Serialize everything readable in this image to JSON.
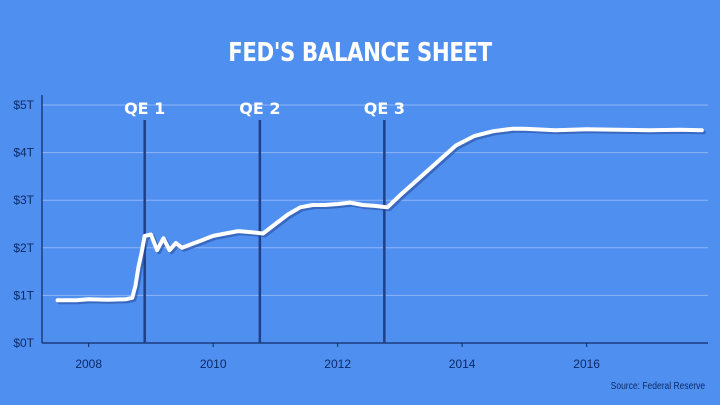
{
  "chart_data": {
    "type": "line",
    "title": "FED'S BALANCE SHEET",
    "source": "Source: Federal Reserve",
    "y_ticks": [
      "$0T",
      "$1T",
      "$2T",
      "$3T",
      "$4T",
      "$5T"
    ],
    "x_ticks": [
      "2008",
      "2010",
      "2012",
      "2014",
      "2016"
    ],
    "ylim": [
      0,
      5
    ],
    "xlim": [
      2007.25,
      2017.95
    ],
    "grid": true,
    "annotations": [
      {
        "label": "QE 1",
        "x": 2008.9
      },
      {
        "label": "QE 2",
        "x": 2010.75
      },
      {
        "label": "QE 3",
        "x": 2012.75
      }
    ],
    "series": [
      {
        "x": [
          2007.5,
          2007.8,
          2008.0,
          2008.3,
          2008.6,
          2008.7,
          2008.75,
          2008.8,
          2008.85,
          2008.9,
          2009.0,
          2009.1,
          2009.2,
          2009.3,
          2009.4,
          2009.5,
          2009.6,
          2009.7,
          2009.8,
          2009.9,
          2010.0,
          2010.2,
          2010.4,
          2010.6,
          2010.8,
          2011.0,
          2011.2,
          2011.4,
          2011.6,
          2011.8,
          2012.0,
          2012.2,
          2012.4,
          2012.6,
          2012.8,
          2013.0,
          2013.3,
          2013.6,
          2013.9,
          2014.2,
          2014.5,
          2014.8,
          2015.0,
          2015.5,
          2016.0,
          2016.5,
          2017.0,
          2017.5,
          2017.85
        ],
        "values": [
          0.9,
          0.9,
          0.92,
          0.91,
          0.92,
          0.95,
          1.2,
          1.6,
          1.9,
          2.25,
          2.28,
          1.95,
          2.2,
          1.95,
          2.1,
          2.0,
          2.05,
          2.1,
          2.15,
          2.2,
          2.25,
          2.3,
          2.35,
          2.33,
          2.3,
          2.5,
          2.7,
          2.85,
          2.9,
          2.9,
          2.92,
          2.95,
          2.9,
          2.88,
          2.85,
          3.1,
          3.45,
          3.8,
          4.15,
          4.35,
          4.45,
          4.5,
          4.5,
          4.47,
          4.49,
          4.48,
          4.47,
          4.48,
          4.47
        ]
      }
    ]
  }
}
